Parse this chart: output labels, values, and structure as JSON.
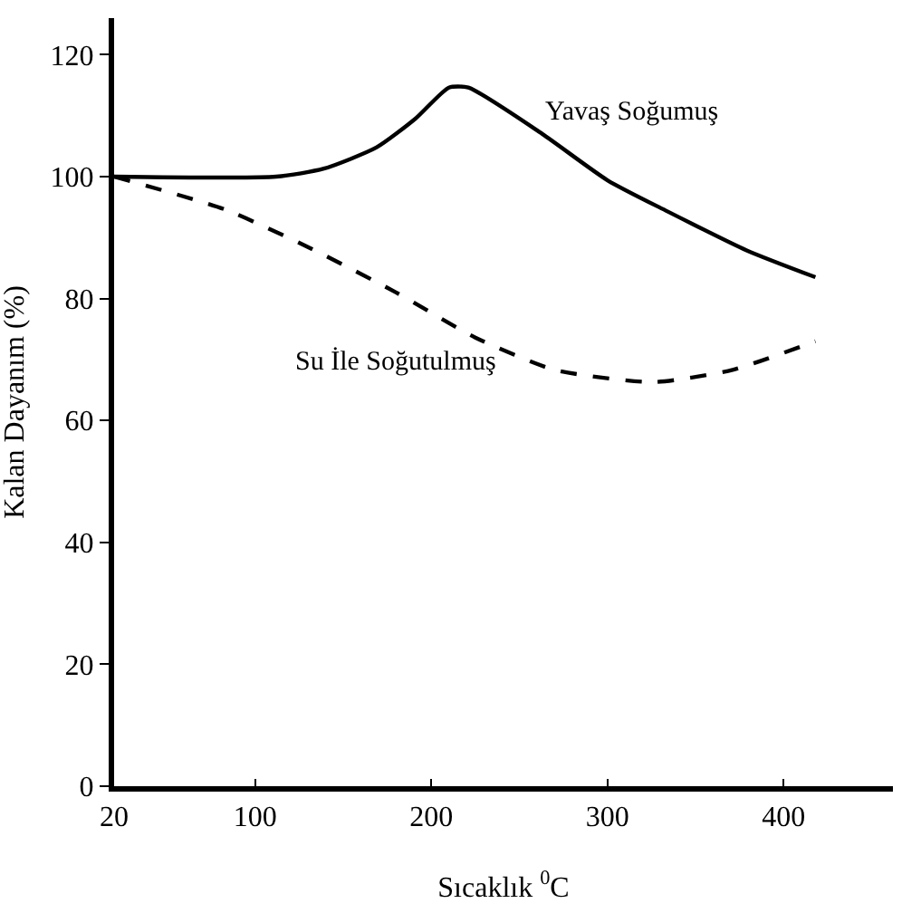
{
  "chart_data": {
    "type": "line",
    "xlabel": "Sıcaklık $^{0}$C",
    "ylabel": "Kalan Dayanım (%)",
    "xlim": [
      20,
      462
    ],
    "xticks": [
      20,
      100,
      200,
      300,
      400
    ],
    "ylim": [
      0,
      126
    ],
    "yticks": [
      0,
      20,
      40,
      60,
      80,
      100,
      120
    ],
    "legend": false,
    "marker": "none",
    "series": [
      {
        "name": "Yavaş Soğumuş",
        "color": "#000000",
        "line_style": "solid",
        "x": [
          20,
          112,
          139,
          169,
          191,
          210,
          221,
          263,
          300,
          334,
          379,
          418
        ],
        "values": [
          100,
          100,
          101.3,
          104.8,
          109.5,
          114.6,
          114.6,
          107,
          99.4,
          94.3,
          87.9,
          83.5
        ]
      },
      {
        "name": "Su İle Soğutulmuş",
        "color": "#000000",
        "line_style": "dashed",
        "x": [
          20,
          83,
          131,
          180,
          225,
          270,
          326,
          371,
          418
        ],
        "values": [
          100,
          94.6,
          88.3,
          81,
          73.6,
          68.3,
          66.3,
          68.3,
          73
        ]
      }
    ]
  }
}
